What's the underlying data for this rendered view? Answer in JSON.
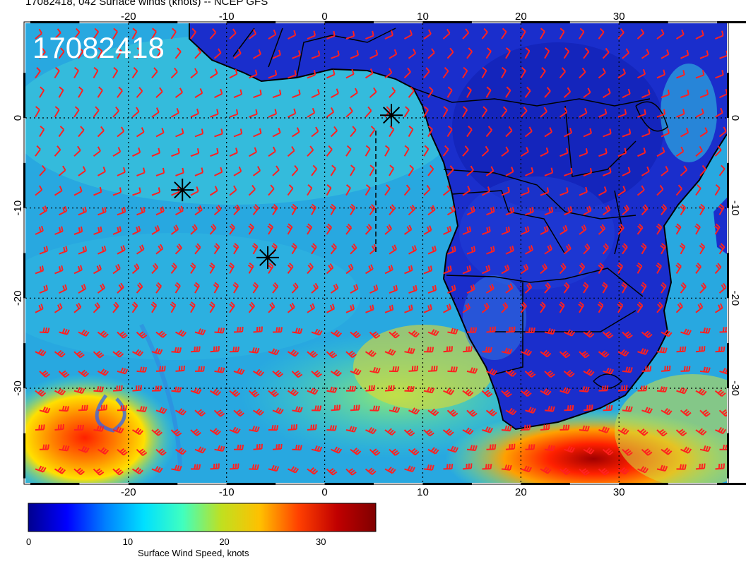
{
  "title": "17082418, 042 Surface winds (knots) -- NCEP GFS",
  "stamp": "17082418",
  "axes": {
    "lon_ticks": [
      "-20",
      "-10",
      "0",
      "10",
      "20",
      "30"
    ],
    "lat_ticks": [
      "0",
      "-10",
      "-20",
      "-30"
    ],
    "lon_range": [
      -30.5,
      41
    ],
    "lat_range": [
      -40.5,
      10.5
    ]
  },
  "markers": [
    {
      "symbol": "asterisk",
      "lon": -14.5,
      "lat": -8
    },
    {
      "symbol": "asterisk",
      "lon": -5.8,
      "lat": -15.5
    },
    {
      "symbol": "asterisk",
      "lon": 6.8,
      "lat": 0.3
    }
  ],
  "colorbar": {
    "title": "Surface Wind Speed, knots",
    "tick_labels": [
      "0",
      "10",
      "20",
      "30"
    ],
    "range": [
      0,
      36
    ],
    "colormap": [
      "#00008f",
      "#0000ff",
      "#0080ff",
      "#00e0ff",
      "#40ffbf",
      "#c0e020",
      "#ffc000",
      "#ff4000",
      "#c00000",
      "#800000"
    ]
  },
  "colors": {
    "wind_barbs": "#ff2020",
    "coastline": "#000000",
    "land_base": "#1a2ecc",
    "ocean_base": "#28a8e0"
  }
}
